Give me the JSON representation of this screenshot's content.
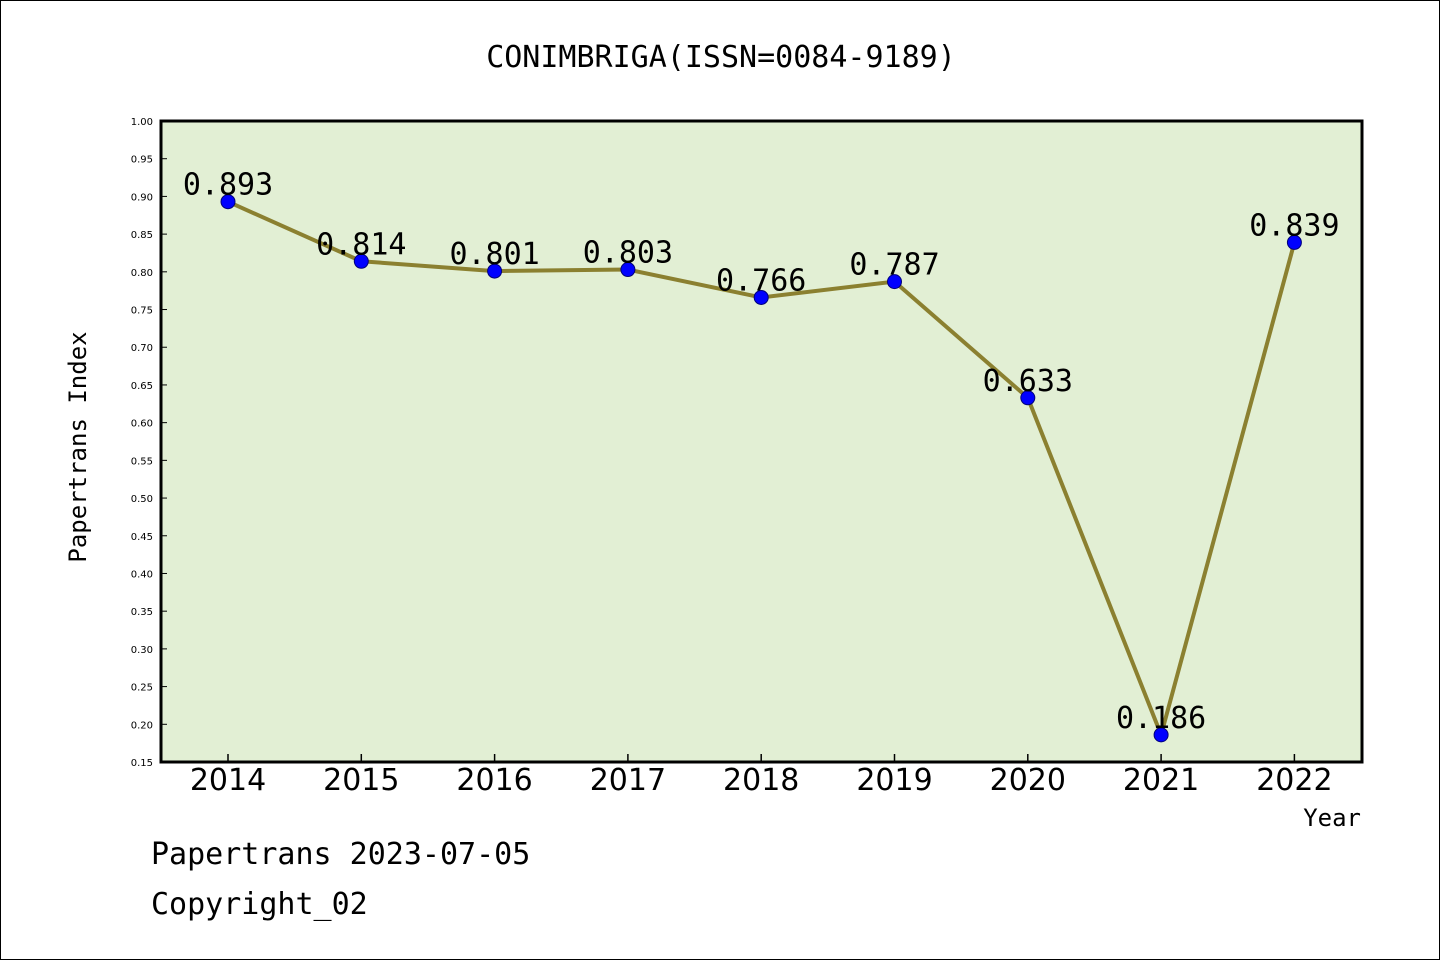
{
  "chart_data": {
    "type": "line",
    "title": "CONIMBRIGA(ISSN=0084-9189)",
    "xlabel": "Year",
    "ylabel": "Papertrans Index",
    "categories": [
      "2014",
      "2015",
      "2016",
      "2017",
      "2018",
      "2019",
      "2020",
      "2021",
      "2022"
    ],
    "series": [
      {
        "values": [
          0.893,
          0.814,
          0.801,
          0.803,
          0.766,
          0.787,
          0.633,
          0.186,
          0.839
        ],
        "data_labels": [
          "0.893",
          "0.814",
          "0.801",
          "0.803",
          "0.766",
          "0.787",
          "0.633",
          "0.186",
          "0.839"
        ]
      }
    ],
    "ylim": [
      0.15,
      1.0
    ],
    "yticks": [
      "0.15",
      "0.20",
      "0.25",
      "0.30",
      "0.35",
      "0.40",
      "0.45",
      "0.50",
      "0.55",
      "0.60",
      "0.65",
      "0.70",
      "0.75",
      "0.80",
      "0.85",
      "0.90",
      "0.95",
      "1.00"
    ],
    "grid": false,
    "colors": {
      "plot_background": "#e2efd4",
      "line": "#8b8030",
      "marker": "#0000ff"
    }
  },
  "footer": {
    "line1": "Papertrans 2023-07-05",
    "line2": "Copyright_02"
  }
}
